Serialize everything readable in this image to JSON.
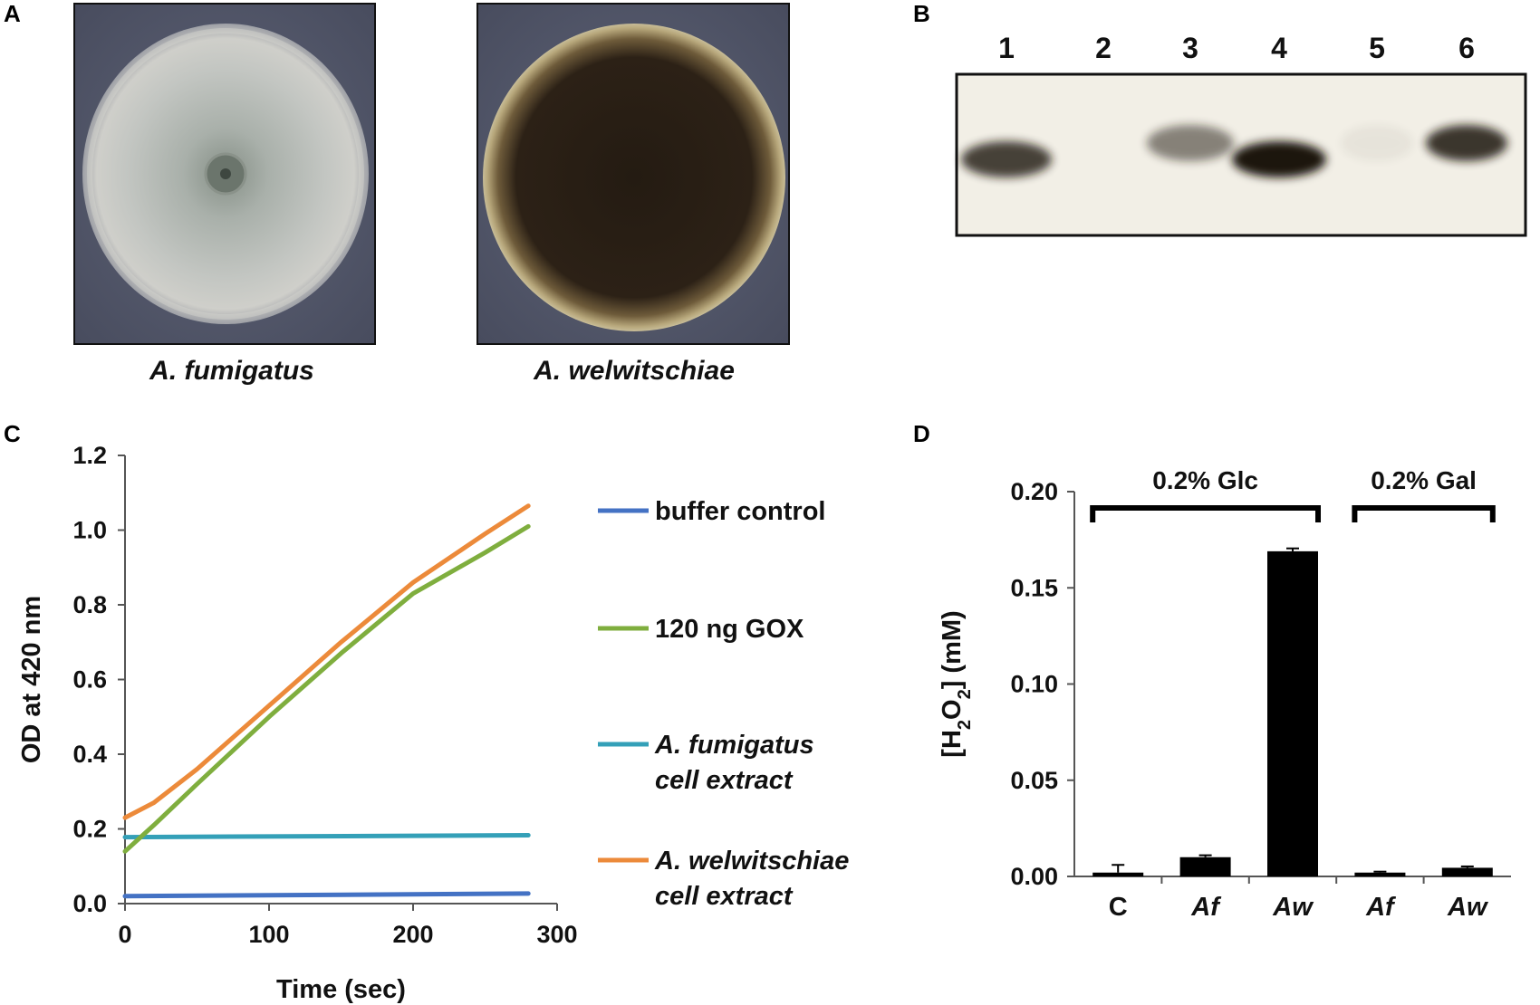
{
  "panels": {
    "A": {
      "label": "A",
      "captions": [
        "A. fumigatus",
        "A. welwitschiae"
      ]
    },
    "B": {
      "label": "B",
      "lanes": [
        "1",
        "2",
        "3",
        "4",
        "5",
        "6"
      ],
      "band_intensity": [
        0.8,
        0.0,
        0.5,
        1.0,
        0.05,
        0.85
      ]
    },
    "C": {
      "label": "C"
    },
    "D": {
      "label": "D"
    }
  },
  "chart_data": [
    {
      "id": "C",
      "type": "line",
      "xlabel": "Time (sec)",
      "ylabel": "OD at 420 nm",
      "xlim": [
        0,
        300
      ],
      "ylim": [
        0.0,
        1.2
      ],
      "xticks": [
        "0",
        "100",
        "200",
        "300"
      ],
      "yticks": [
        "0.0",
        "0.2",
        "0.4",
        "0.6",
        "0.8",
        "1.0",
        "1.2"
      ],
      "legend_position": "right",
      "series": [
        {
          "name": "buffer control",
          "name_lines": [
            "buffer control"
          ],
          "italic_lines": [
            false
          ],
          "color": "#4472c4",
          "x": [
            0,
            280
          ],
          "y": [
            0.02,
            0.027
          ]
        },
        {
          "name": "120 ng GOX",
          "name_lines": [
            "120 ng GOX"
          ],
          "italic_lines": [
            false
          ],
          "color": "#7fae3e",
          "x": [
            0,
            20,
            50,
            100,
            150,
            200,
            250,
            280
          ],
          "y": [
            0.14,
            0.21,
            0.32,
            0.5,
            0.67,
            0.83,
            0.94,
            1.01
          ]
        },
        {
          "name": "A. fumigatus cell extract",
          "name_lines": [
            "A. fumigatus",
            "cell extract"
          ],
          "italic_lines": [
            true,
            true
          ],
          "color": "#34a0b8",
          "x": [
            0,
            280
          ],
          "y": [
            0.178,
            0.183
          ]
        },
        {
          "name": "A. welwitschiae cell extract",
          "name_lines": [
            "A. welwitschiae",
            "cell extract"
          ],
          "italic_lines": [
            true,
            true
          ],
          "color": "#ec8a3a",
          "x": [
            0,
            20,
            50,
            100,
            150,
            200,
            250,
            280
          ],
          "y": [
            0.23,
            0.27,
            0.36,
            0.53,
            0.7,
            0.86,
            0.99,
            1.065
          ]
        }
      ]
    },
    {
      "id": "D",
      "type": "bar",
      "ylabel": "[H2O2] (mM)",
      "ylabel_parts": [
        "[H",
        "2",
        "O",
        "2",
        "] (mM)"
      ],
      "ylim": [
        0.0,
        0.2
      ],
      "yticks": [
        "0.00",
        "0.05",
        "0.10",
        "0.15",
        "0.20"
      ],
      "categories": [
        "C",
        "Af",
        "Aw",
        "Af",
        "Aw"
      ],
      "category_italic": [
        false,
        true,
        true,
        true,
        true
      ],
      "values": [
        0.002,
        0.01,
        0.169,
        0.002,
        0.0045
      ],
      "errors": [
        0.004,
        0.001,
        0.0015,
        0.0005,
        0.0007
      ],
      "color": "#000000",
      "groups": [
        {
          "label": "0.2% Glc",
          "from": 0,
          "to": 2
        },
        {
          "label": "0.2% Gal",
          "from": 3,
          "to": 4
        }
      ]
    }
  ]
}
